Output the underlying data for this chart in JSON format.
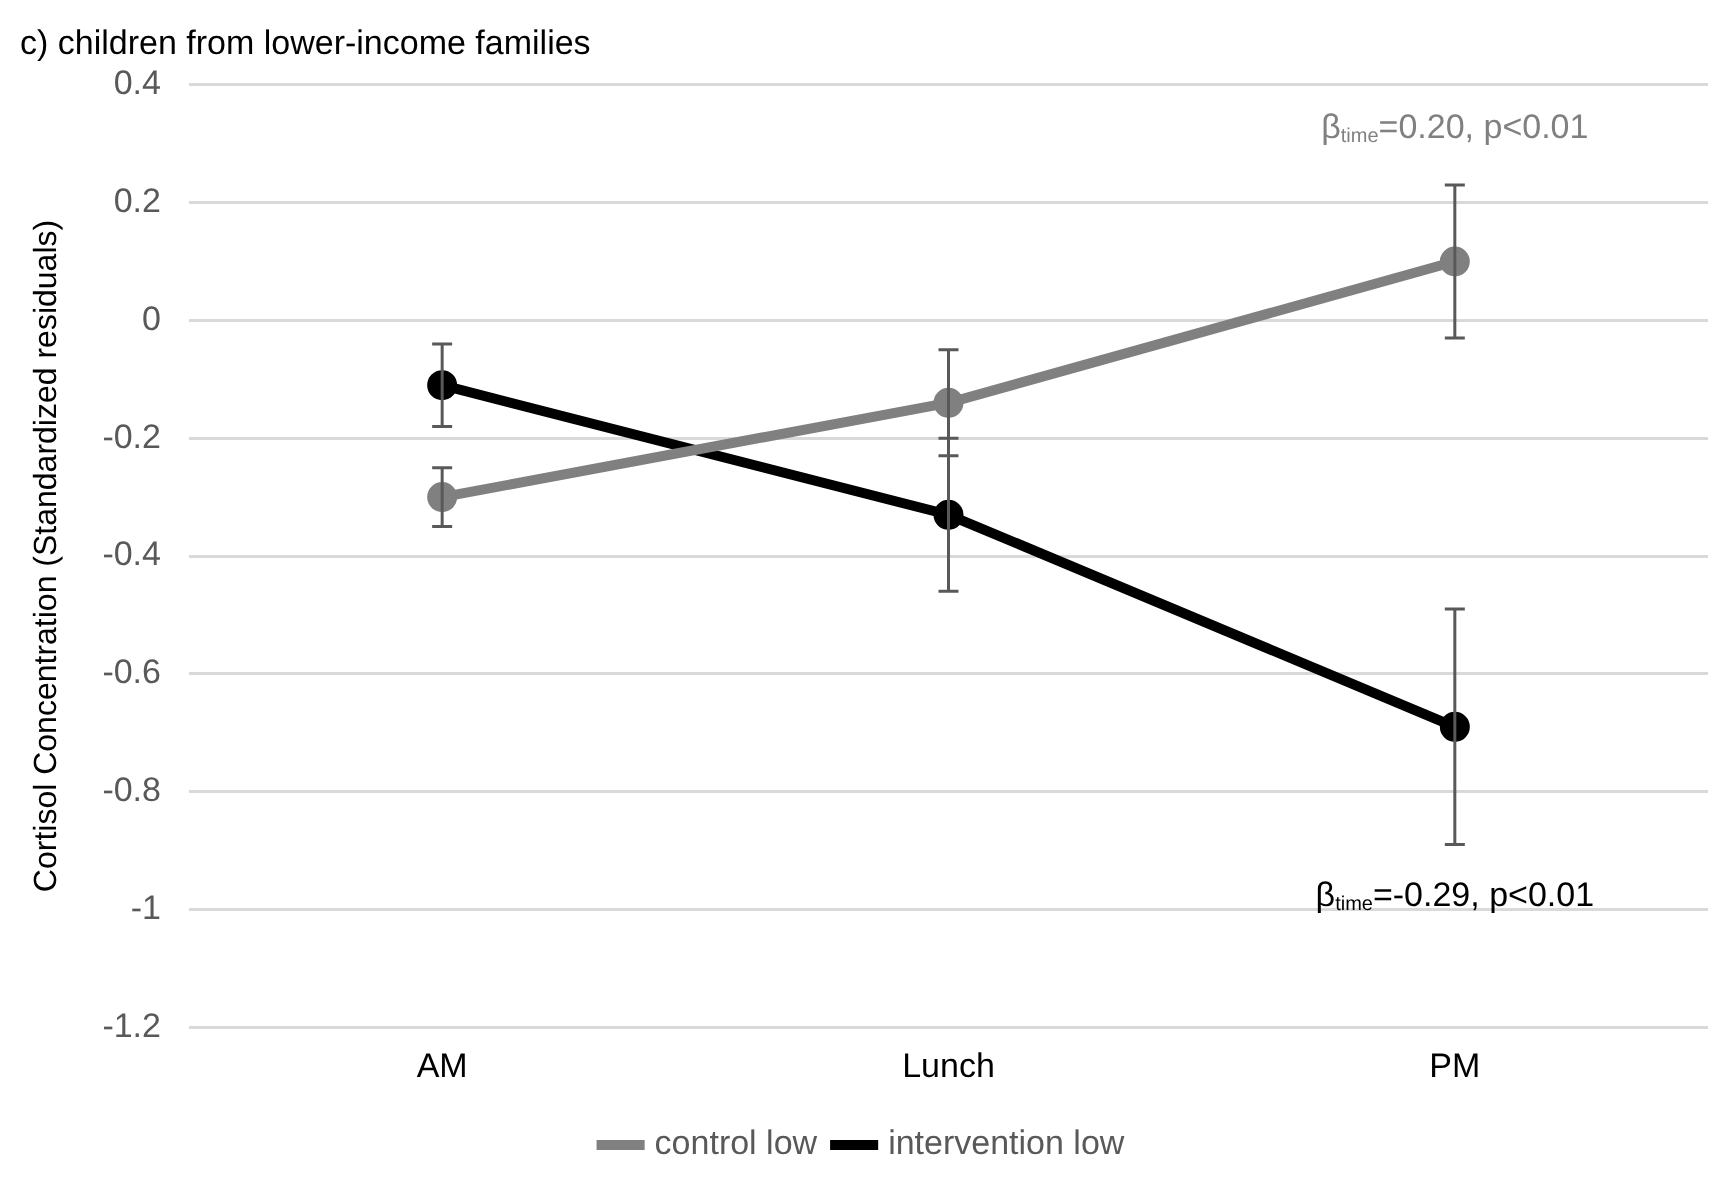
{
  "chart_data": {
    "type": "line",
    "title": "c) children from lower-income families",
    "ylabel": "Cortisol Concentration (Standardized residuals)",
    "categories": [
      "AM",
      "Lunch",
      "PM"
    ],
    "series": [
      {
        "name": "control low",
        "color": "#808080",
        "values": [
          -0.3,
          -0.14,
          0.1
        ],
        "errors": [
          0.05,
          0.09,
          0.13
        ]
      },
      {
        "name": "intervention low",
        "color": "#000000",
        "values": [
          -0.11,
          -0.33,
          -0.69
        ],
        "errors": [
          0.07,
          0.13,
          0.2
        ]
      }
    ],
    "annotations": [
      "β$_{time}$=0.20, p<0.01",
      "β$_{time}$=-0.29, p<0.01"
    ],
    "ylim": [
      -1.2,
      0.4
    ],
    "yticks": [
      -1.2,
      -1,
      -0.8,
      -0.6,
      -0.4,
      -0.2,
      0,
      0.2,
      0.4
    ],
    "grid": "y",
    "legend": "bottom",
    "marker": "circle",
    "line_style": "solid"
  }
}
